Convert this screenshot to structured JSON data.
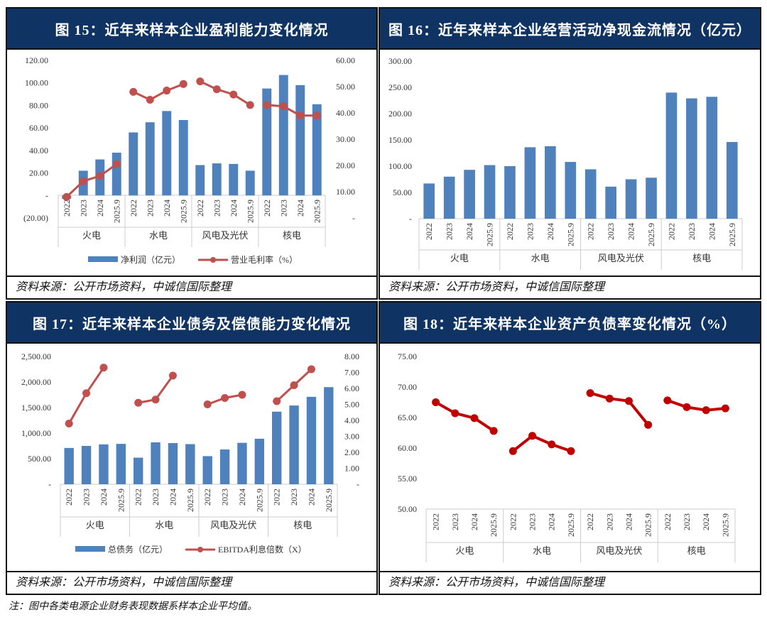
{
  "source_text": "资料来源：公开市场资料，中诚信国际整理",
  "note": "注：图中各类电源企业财务表现数据系样本企业平均值。",
  "colors": {
    "bar": "#4f81bd",
    "line": "#c0504d",
    "line18": "#c00000",
    "title_bg": "#0f3464"
  },
  "chart_data": [
    {
      "id": "fig15",
      "title": "图 15：近年来样本企业盈利能力变化情况",
      "type": "bar+line",
      "groups": [
        "火电",
        "水电",
        "风电及光伏",
        "核电"
      ],
      "categories": [
        "2022",
        "2023",
        "2024",
        "2025.9"
      ],
      "left_ticks": [
        "120.00",
        "100.00",
        "80.00",
        "60.00",
        "40.00",
        "20.00",
        "-",
        "(20.00)"
      ],
      "ylim": [
        -20,
        120
      ],
      "right_ticks": [
        "60.00",
        "50.00",
        "40.00",
        "30.00",
        "20.00",
        "10.00",
        "-"
      ],
      "y2lim": [
        0,
        60
      ],
      "series": [
        {
          "name": "净利润（亿元）",
          "type": "bar",
          "values": [
            [
              -3,
              22,
              32,
              38
            ],
            [
              56,
              65,
              75,
              67
            ],
            [
              27,
              28.5,
              28,
              22
            ],
            [
              95,
              107,
              98,
              81
            ]
          ]
        },
        {
          "name": "营业毛利率（%）",
          "type": "line",
          "axis": "right",
          "values": [
            [
              8,
              14,
              16,
              20.5
            ],
            [
              48,
              45,
              48.5,
              51
            ],
            [
              52,
              49,
              47,
              43
            ],
            [
              43,
              42.5,
              39,
              39
            ]
          ]
        }
      ]
    },
    {
      "id": "fig16",
      "title": "图 16：近年来样本企业经营活动净现金流情况（亿元）",
      "type": "bar",
      "groups": [
        "火电",
        "水电",
        "风电及光伏",
        "核电"
      ],
      "categories": [
        "2022",
        "2023",
        "2024",
        "2025.9"
      ],
      "left_ticks": [
        "300.00",
        "250.00",
        "200.00",
        "150.00",
        "100.00",
        "50.00",
        "-"
      ],
      "ylim": [
        0,
        300
      ],
      "series": [
        {
          "name": "经营活动净现金流",
          "type": "bar",
          "values": [
            [
              67,
              80,
              93,
              102
            ],
            [
              100,
              136,
              138,
              108
            ],
            [
              94,
              61,
              75,
              78
            ],
            [
              240,
              229,
              232,
              146
            ]
          ]
        }
      ]
    },
    {
      "id": "fig17",
      "title": "图 17：近年来样本企业债务及偿债能力变化情况",
      "type": "bar+line",
      "groups": [
        "火电",
        "水电",
        "风电及光伏",
        "核电"
      ],
      "categories": [
        "2022",
        "2023",
        "2024",
        "2025.9"
      ],
      "left_ticks": [
        "2,500.00",
        "2,000.00",
        "1,500.00",
        "1,000.00",
        "500.00",
        "-"
      ],
      "ylim": [
        0,
        2500
      ],
      "right_ticks": [
        "8.00",
        "7.00",
        "6.00",
        "5.00",
        "4.00",
        "3.00",
        "2.00",
        "1.00",
        "-"
      ],
      "y2lim": [
        0,
        8
      ],
      "series": [
        {
          "name": "总债务（亿元）",
          "type": "bar",
          "values": [
            [
              710,
              750,
              780,
              790
            ],
            [
              520,
              820,
              805,
              785
            ],
            [
              550,
              680,
              810,
              890
            ],
            [
              1420,
              1540,
              1710,
              1900
            ]
          ]
        },
        {
          "name": "EBITDA利息倍数（X）",
          "type": "line",
          "axis": "right",
          "values": [
            [
              3.8,
              5.7,
              7.3,
              null
            ],
            [
              5.1,
              5.3,
              6.8,
              null
            ],
            [
              5.0,
              5.4,
              5.6,
              null
            ],
            [
              5.2,
              6.2,
              7.2,
              null
            ]
          ]
        }
      ]
    },
    {
      "id": "fig18",
      "title": "图 18：近年来样本企业资产负债率变化情况（%）",
      "type": "line",
      "groups": [
        "火电",
        "水电",
        "风电及光伏",
        "核电"
      ],
      "categories": [
        "2022",
        "2023",
        "2024",
        "2025.9"
      ],
      "left_ticks": [
        "75.00",
        "70.00",
        "65.00",
        "60.00",
        "55.00",
        "50.00"
      ],
      "ylim": [
        50,
        75
      ],
      "series": [
        {
          "name": "资产负债率",
          "type": "line",
          "values": [
            [
              67.5,
              65.7,
              64.9,
              62.8
            ],
            [
              59.5,
              62,
              60.6,
              59.5
            ],
            [
              69,
              68.1,
              67.7,
              63.8
            ],
            [
              67.8,
              66.7,
              66.2,
              66.5
            ]
          ]
        }
      ]
    }
  ]
}
